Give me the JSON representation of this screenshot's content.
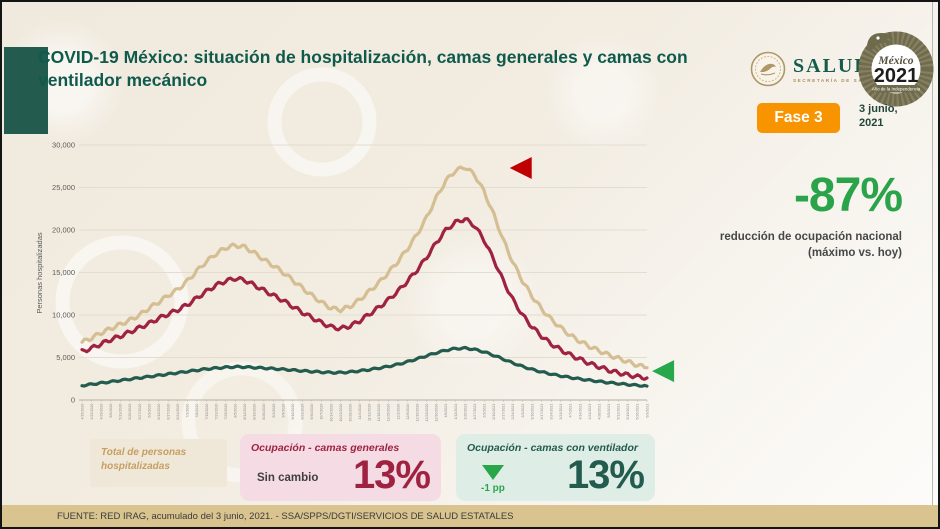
{
  "header": {
    "title": "COVID-19 México: situación de hospitalización, camas generales y camas con ventilador mecánico",
    "phase_badge": "Fase 3",
    "date_line1": "3 junio,",
    "date_line2": "2021",
    "salud_logo": {
      "name": "SALUD",
      "subtitle": "SECRETARÍA DE SALUD"
    },
    "logo_2021": {
      "script": "México",
      "year": "2021",
      "banner": "Año de la Independencia"
    }
  },
  "kpi": {
    "value": "-87%",
    "caption_line1": "reducción de ocupación nacional",
    "caption_line2": "(máximo vs. hoy)"
  },
  "legend_boxes": {
    "total": {
      "label": "Total de personas hospitalizadas"
    },
    "general": {
      "title": "Ocupación - camas generales",
      "change": "Sin cambio",
      "value": "13%"
    },
    "ventilator": {
      "title": "Ocupación - camas con ventilador",
      "change": "-1 pp",
      "value": "13%"
    }
  },
  "footer": {
    "source": "FUENTE: RED IRAG, acumulado del 3 junio, 2021.  -   SSA/SPPS/DGTI/SERVICIOS DE SALUD ESTATALES"
  },
  "theme": {
    "accent_green": "#235B4E",
    "maroon": "#9F2241",
    "tan": "#D4BE92",
    "bright_green": "#2AA64A",
    "badge_orange": "#F79400",
    "marker_red": "#C00000",
    "footer_bar": "#D9C48F",
    "background_cream": "#F1EBE1"
  },
  "chart_data": {
    "type": "line",
    "title": "",
    "xlabel": "",
    "ylabel": "Personas hospitalizadas",
    "ylim": [
      0,
      30000
    ],
    "grid": "horizontal",
    "legend_position": "none",
    "yticks": [
      0,
      5000,
      10000,
      15000,
      20000,
      25000,
      30000
    ],
    "ytick_labels": [
      "0",
      "5,000",
      "10,000",
      "15,000",
      "20,000",
      "25,000",
      "30,000"
    ],
    "x": [
      "4/15/2020",
      "4/22/2020",
      "4/29/2020",
      "5/6/2020",
      "5/13/2020",
      "5/20/2020",
      "5/27/2020",
      "6/3/2020",
      "6/10/2020",
      "6/17/2020",
      "6/24/2020",
      "7/1/2020",
      "7/8/2020",
      "7/15/2020",
      "7/22/2020",
      "7/29/2020",
      "8/5/2020",
      "8/12/2020",
      "8/19/2020",
      "8/26/2020",
      "9/2/2020",
      "9/9/2020",
      "9/16/2020",
      "9/23/2020",
      "9/30/2020",
      "10/7/2020",
      "10/14/2020",
      "10/21/2020",
      "10/28/2020",
      "11/4/2020",
      "11/11/2020",
      "11/18/2020",
      "11/25/2020",
      "12/2/2020",
      "12/9/2020",
      "12/16/2020",
      "12/23/2020",
      "12/30/2020",
      "1/6/2021",
      "1/13/2021",
      "1/20/2021",
      "1/27/2021",
      "2/3/2021",
      "2/10/2021",
      "2/17/2021",
      "2/24/2021",
      "3/3/2021",
      "3/10/2021",
      "3/17/2021",
      "3/24/2021",
      "3/31/2021",
      "4/7/2021",
      "4/14/2021",
      "4/21/2021",
      "4/28/2021",
      "5/5/2021",
      "5/12/2021",
      "5/19/2021",
      "5/26/2021",
      "6/3/2021"
    ],
    "series": [
      {
        "name": "Total de personas hospitalizadas",
        "color": "#D4BE92",
        "values": [
          6800,
          7300,
          7900,
          8400,
          8900,
          9400,
          10000,
          10800,
          11500,
          12300,
          13000,
          14000,
          15200,
          16300,
          17200,
          17900,
          18200,
          18000,
          17300,
          16500,
          15800,
          15000,
          14100,
          13200,
          12300,
          11500,
          10800,
          10600,
          11000,
          11800,
          12800,
          13800,
          15000,
          16300,
          17800,
          19500,
          21500,
          23800,
          25800,
          27000,
          27400,
          26500,
          24500,
          21800,
          18800,
          16200,
          14000,
          12200,
          10700,
          9500,
          8500,
          7600,
          6900,
          6300,
          5800,
          5300,
          4900,
          4500,
          4100,
          3800
        ]
      },
      {
        "name": "Ocupación - camas generales",
        "color": "#9F2241",
        "values": [
          5700,
          6100,
          6600,
          7100,
          7500,
          8000,
          8500,
          9000,
          9600,
          10100,
          10600,
          11200,
          12000,
          12800,
          13500,
          14000,
          14300,
          14100,
          13500,
          12900,
          12300,
          11700,
          11000,
          10300,
          9700,
          9100,
          8600,
          8400,
          8700,
          9300,
          10100,
          10900,
          11800,
          12800,
          14000,
          15300,
          16800,
          18500,
          20000,
          20900,
          21300,
          20500,
          18800,
          16500,
          14000,
          11800,
          10000,
          8600,
          7500,
          6600,
          5900,
          5300,
          4800,
          4300,
          3900,
          3500,
          3200,
          2950,
          2750,
          2600
        ]
      },
      {
        "name": "Ocupación - camas con ventilador",
        "color": "#235B4E",
        "values": [
          1700,
          1850,
          2000,
          2150,
          2300,
          2450,
          2600,
          2750,
          2900,
          3050,
          3200,
          3350,
          3500,
          3650,
          3750,
          3850,
          3900,
          3880,
          3820,
          3750,
          3680,
          3600,
          3520,
          3430,
          3350,
          3280,
          3230,
          3220,
          3300,
          3420,
          3570,
          3750,
          3950,
          4200,
          4500,
          4850,
          5200,
          5550,
          5850,
          6050,
          6100,
          5950,
          5650,
          5250,
          4800,
          4350,
          3950,
          3600,
          3300,
          3050,
          2830,
          2640,
          2470,
          2320,
          2180,
          2050,
          1930,
          1820,
          1720,
          1640
        ]
      }
    ],
    "annotations": [
      {
        "name": "peak-marker",
        "shape": "triangle-left",
        "color": "#C00000",
        "x_frac": 0.757,
        "y_value": 27300
      },
      {
        "name": "current-marker",
        "shape": "triangle-left",
        "color": "#29A84B",
        "x_frac": 1.009,
        "y_value": 3400
      }
    ]
  }
}
